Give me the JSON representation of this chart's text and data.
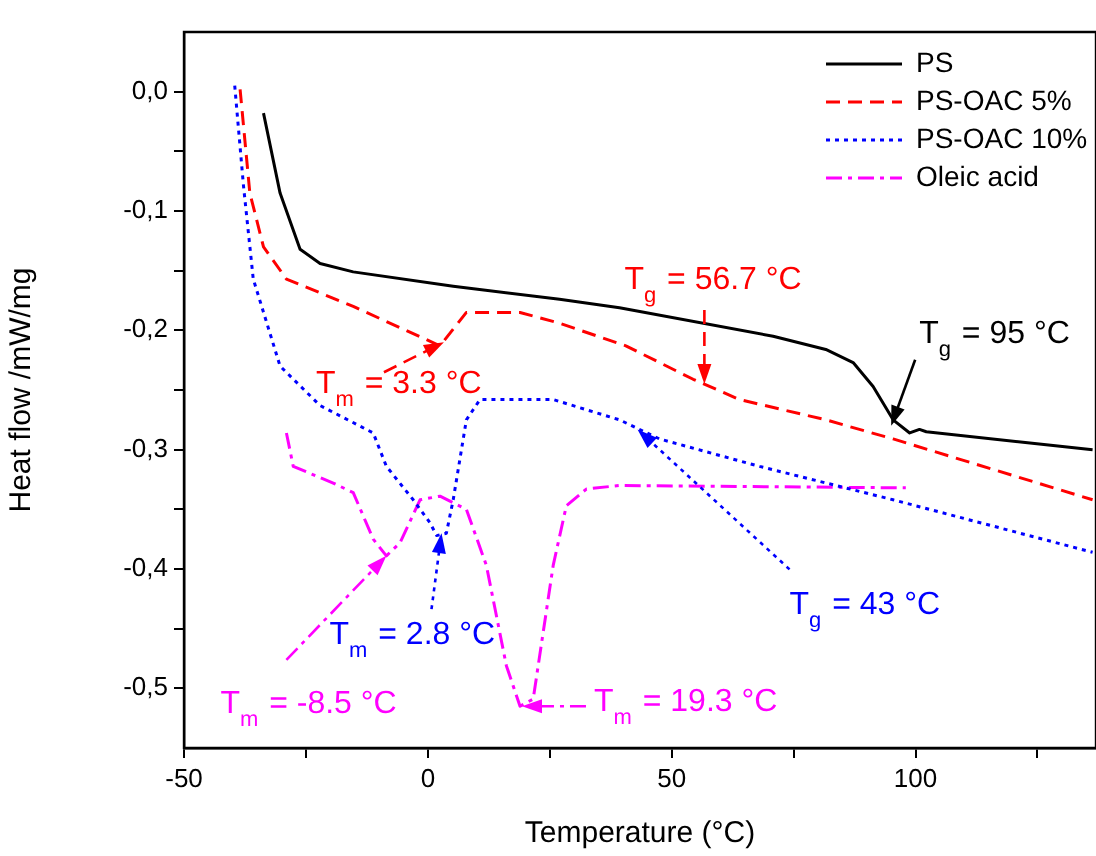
{
  "chart_data": {
    "type": "line",
    "xlabel": "Temperature (°C)",
    "ylabel": "Heat flow /mW/mg",
    "xlim": [
      -50,
      137
    ],
    "xticks": [
      -50,
      {
        "value": -25,
        "label": null
      },
      0,
      {
        "value": 25,
        "label": null
      },
      50,
      {
        "value": 75,
        "label": null
      },
      100,
      {
        "value": 125,
        "label": null
      }
    ],
    "ylim": [
      -0.55,
      0.05
    ],
    "yticks": [
      {
        "value": 0,
        "label": "0,0"
      },
      {
        "value": -0.05,
        "label": null
      },
      {
        "value": -0.1,
        "label": "-0,1"
      },
      {
        "value": -0.15,
        "label": null
      },
      {
        "value": -0.2,
        "label": "-0,2"
      },
      {
        "value": -0.25,
        "label": null
      },
      {
        "value": -0.3,
        "label": "-0,3"
      },
      {
        "value": -0.35,
        "label": null
      },
      {
        "value": -0.4,
        "label": "-0,4"
      },
      {
        "value": -0.45,
        "label": null
      },
      {
        "value": -0.5,
        "label": "-0,5"
      }
    ],
    "grid": false,
    "legend": "top right",
    "marker": "none",
    "series": [
      {
        "name": "PS",
        "color": "#000000",
        "line_style": "solid",
        "x": [
          -33.7,
          -30.3,
          -26.2,
          -22.1,
          -15.3,
          5.2,
          27,
          39.3,
          70.8,
          81.6,
          87.2,
          91.3,
          95.4,
          98.8,
          100.8,
          102.2,
          122.5,
          136.3
        ],
        "values": [
          -0.018,
          -0.085,
          -0.132,
          -0.144,
          -0.151,
          -0.163,
          -0.174,
          -0.181,
          -0.205,
          -0.216,
          -0.227,
          -0.247,
          -0.275,
          -0.286,
          -0.283,
          -0.285,
          -0.294,
          -0.3
        ]
      },
      {
        "name": "PS-OAC 5%",
        "color": "#ff0000",
        "line_style": "dashed",
        "x": [
          -38.5,
          -36.5,
          -33.7,
          -29,
          -15.3,
          2.5,
          7.9,
          18.9,
          27,
          40.6,
          54.4,
          63.9,
          81.6,
          95.4,
          136.3
        ],
        "values": [
          0.002,
          -0.085,
          -0.13,
          -0.157,
          -0.18,
          -0.213,
          -0.185,
          -0.185,
          -0.194,
          -0.213,
          -0.241,
          -0.258,
          -0.275,
          -0.291,
          -0.342
        ]
      },
      {
        "name": "PS-OAC 10%",
        "color": "#0000ff",
        "line_style": "dotted",
        "x": [
          -39.6,
          -37.8,
          -35.8,
          -30.3,
          -22.1,
          -11.2,
          -8.5,
          -3,
          0.4,
          1.8,
          3.8,
          5.2,
          7.9,
          10.7,
          25.7,
          39.3,
          47.5,
          68,
          95.4,
          136.3
        ],
        "values": [
          0.005,
          -0.079,
          -0.157,
          -0.23,
          -0.263,
          -0.286,
          -0.314,
          -0.342,
          -0.361,
          -0.372,
          -0.37,
          -0.342,
          -0.275,
          -0.258,
          -0.258,
          -0.275,
          -0.291,
          -0.314,
          -0.342,
          -0.386
        ]
      },
      {
        "name": "Oleic acid",
        "color": "#ff00ff",
        "line_style": "dashdot",
        "x": [
          -29,
          -27.6,
          -19.4,
          -15.3,
          -11.2,
          -8.5,
          -5.7,
          -1.6,
          2.5,
          7.9,
          12,
          16.1,
          18.9,
          21.6,
          25.7,
          28.4,
          32.5,
          39.3,
          98
        ],
        "values": [
          -0.286,
          -0.314,
          -0.328,
          -0.336,
          -0.375,
          -0.389,
          -0.378,
          -0.342,
          -0.339,
          -0.35,
          -0.397,
          -0.481,
          -0.515,
          -0.509,
          -0.397,
          -0.347,
          -0.333,
          -0.33,
          -0.332
        ]
      }
    ],
    "annotations": [
      {
        "text": "T$_{m}$ = 3.3 °C",
        "x": 3.3,
        "y": -0.21
      },
      {
        "text": "T$_{g}$ = 56.7 °C",
        "x": 56.7,
        "y": -0.245
      },
      {
        "text": "T$_{g}$ = 95 °C",
        "x": 95,
        "y": -0.28
      },
      {
        "text": "T$_{m}$ = 2.8 °C",
        "x": 2.8,
        "y": -0.37
      },
      {
        "text": "T$_{g}$ = 43 °C",
        "x": 43,
        "y": -0.283
      },
      {
        "text": "T$_{m}$ = -8.5 °C",
        "x": -8.5,
        "y": -0.389
      },
      {
        "text": "T$_{m}$ = 19.3 °C",
        "x": 19.3,
        "y": -0.515
      }
    ]
  }
}
